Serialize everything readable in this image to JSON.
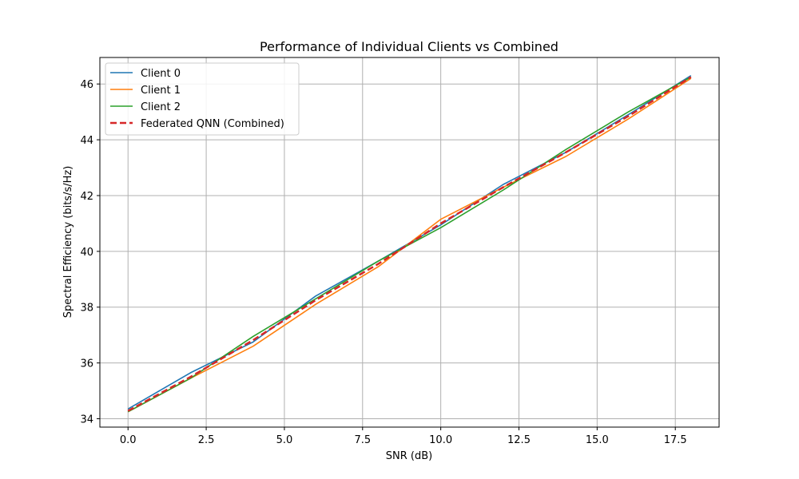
{
  "chart_data": {
    "type": "line",
    "title": "Performance of Individual Clients vs Combined",
    "xlabel": "SNR (dB)",
    "ylabel": "Spectral Efficiency (bits/s/Hz)",
    "xlim": [
      -0.9,
      18.9
    ],
    "ylim": [
      33.7,
      46.95
    ],
    "xticks": [
      0.0,
      2.5,
      5.0,
      7.5,
      10.0,
      12.5,
      15.0,
      17.5
    ],
    "xtick_labels": [
      "0.0",
      "2.5",
      "5.0",
      "7.5",
      "10.0",
      "12.5",
      "15.0",
      "17.5"
    ],
    "yticks": [
      34,
      36,
      38,
      40,
      42,
      44,
      46
    ],
    "ytick_labels": [
      "34",
      "36",
      "38",
      "40",
      "42",
      "44",
      "46"
    ],
    "grid": true,
    "legend_position": "top-left",
    "x": [
      0,
      2,
      4,
      6,
      8,
      10,
      12,
      14,
      16,
      18
    ],
    "series": [
      {
        "name": "Client 0",
        "color": "#1f77b4",
        "style": "solid",
        "values": [
          34.35,
          35.65,
          36.75,
          38.4,
          39.65,
          40.95,
          42.4,
          43.55,
          44.9,
          46.3
        ]
      },
      {
        "name": "Client 1",
        "color": "#ff7f0e",
        "style": "solid",
        "values": [
          34.25,
          35.45,
          36.6,
          38.1,
          39.45,
          41.15,
          42.3,
          43.4,
          44.75,
          46.2
        ]
      },
      {
        "name": "Client 2",
        "color": "#2ca02c",
        "style": "solid",
        "values": [
          34.25,
          35.45,
          36.95,
          38.3,
          39.65,
          40.85,
          42.2,
          43.65,
          45.0,
          46.25
        ]
      },
      {
        "name": "Federated QNN (Combined)",
        "color": "#d62728",
        "style": "dashed",
        "values": [
          34.28,
          35.5,
          36.82,
          38.25,
          39.55,
          41.0,
          42.3,
          43.55,
          44.85,
          46.25
        ]
      }
    ]
  }
}
